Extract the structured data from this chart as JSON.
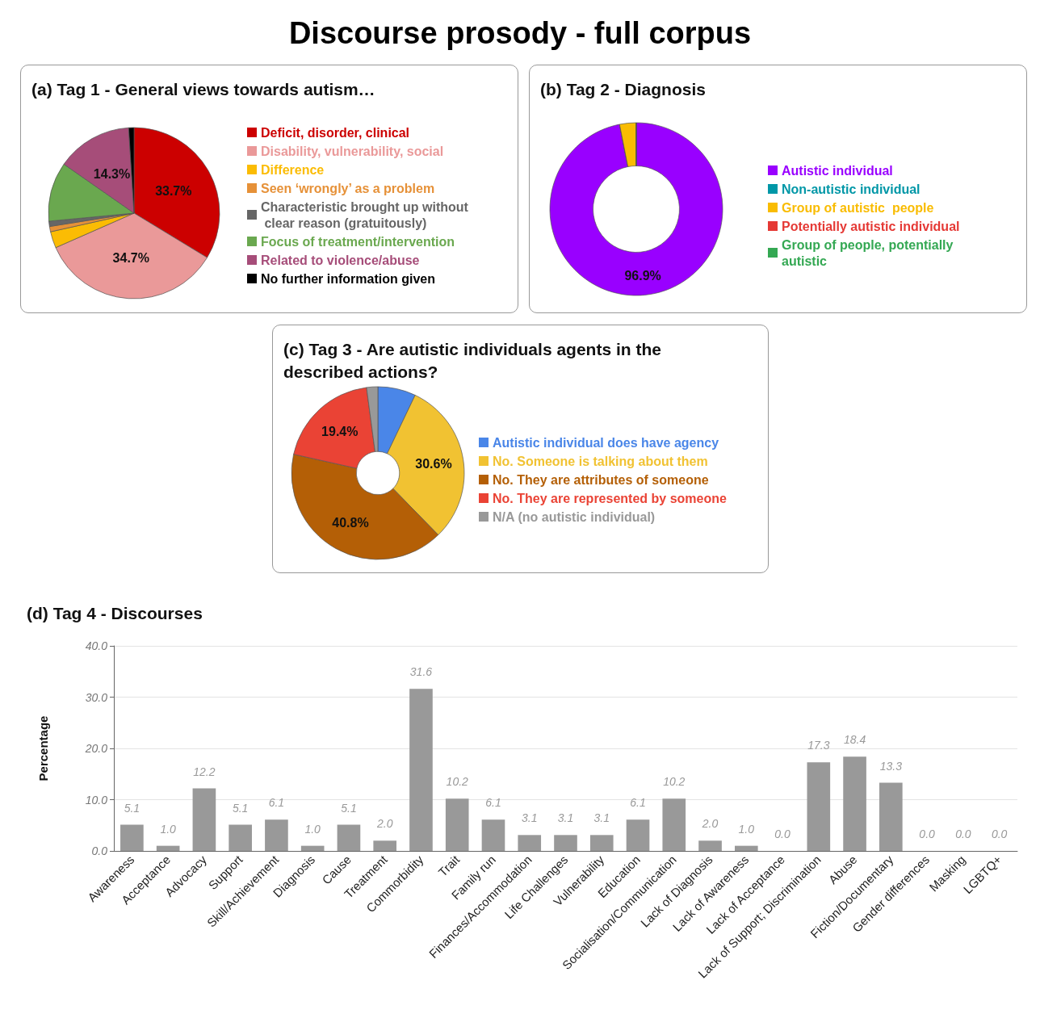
{
  "chart_data": [
    {
      "type": "other",
      "title": "Discourse prosody - full corpus"
    },
    {
      "type": "pie",
      "title": "(a) Tag 1 - General views towards autism…",
      "categories": [
        "Deficit, disorder, clinical",
        "Disability, vulnerability, social",
        "Difference",
        "Seen ‘wrongly’ as a problem",
        "Characteristic brought up without clear reason (gratuitously)",
        "Focus of treatment/intervention",
        "Related to violence/abuse",
        "No further information given"
      ],
      "values": [
        33.7,
        34.7,
        3.1,
        1.0,
        1.0,
        11.2,
        14.3,
        1.0
      ],
      "colors": [
        "#cc0000",
        "#ea9999",
        "#fbbc04",
        "#e69138",
        "#666666",
        "#6aa84f",
        "#a64d79",
        "#000000"
      ],
      "value_labels": [
        "33.7%",
        "34.7%",
        null,
        null,
        null,
        null,
        "14.3%",
        null
      ],
      "legend": "right"
    },
    {
      "type": "donut",
      "title": "(b) Tag 2 - Diagnosis",
      "categories": [
        "Autistic individual",
        "Non-autistic individual",
        "Group of autistic  people",
        "Potentially autistic individual",
        "Group of people, potentially autistic"
      ],
      "values": [
        96.9,
        0,
        3.1,
        0,
        0
      ],
      "colors": [
        "#9900ff",
        "#0097a7",
        "#f9bc02",
        "#e53935",
        "#34a853"
      ],
      "value_labels": [
        "96.9%",
        null,
        null,
        null,
        null
      ],
      "legend": "right"
    },
    {
      "type": "donut",
      "title": "(c) Tag 3 - Are autistic individuals agents in the described actions?",
      "categories": [
        "Autistic individual does have agency",
        "No. Someone is talking about them",
        "No. They are attributes of someone",
        "No. They are represented by someone",
        "N/A (no autistic individual)"
      ],
      "values": [
        7.1,
        30.6,
        40.8,
        19.4,
        2.1
      ],
      "colors": [
        "#4a86e8",
        "#f1c232",
        "#b45f06",
        "#ea4335",
        "#999999"
      ],
      "value_labels": [
        null,
        "30.6%",
        "40.8%",
        "19.4%",
        null
      ],
      "legend": "right"
    },
    {
      "type": "bar",
      "title": "(d) Tag 4 - Discourses",
      "ylabel": "Percentage",
      "categories": [
        "Awareness",
        "Acceptance",
        "Advocacy",
        "Support",
        "Skill/Achievement",
        "Diagnosis",
        "Cause",
        "Treatment",
        "Commorbidity",
        "Trait",
        "Family run",
        "Finances/Accommodation",
        "Life Challenges",
        "Vulnerability",
        "Education",
        "Socialisation/Communication",
        "Lack of Diagnosis",
        "Lack of Awareness",
        "Lack of Acceptance",
        "Lack of Support; Discrimination",
        "Abuse",
        "Fiction/Documentary",
        "Gender differences",
        "Masking",
        "LGBTQ+"
      ],
      "values": [
        5.1,
        1.0,
        12.2,
        5.1,
        6.1,
        1.0,
        5.1,
        2.0,
        31.6,
        10.2,
        6.1,
        3.1,
        3.1,
        3.1,
        6.1,
        10.2,
        2.0,
        1.0,
        0.0,
        17.3,
        18.4,
        13.3,
        0.0,
        0.0,
        0.0
      ],
      "color": "#999999",
      "value_labels": [
        "5.1",
        "1.0",
        "12.2",
        "5.1",
        "6.1",
        "1.0",
        "5.1",
        "2.0",
        "31.6",
        "10.2",
        "6.1",
        "3.1",
        "3.1",
        "3.1",
        "6.1",
        "10.2",
        "2.0",
        "1.0",
        "0.0",
        "17.3",
        "18.4",
        "13.3",
        "0.0",
        "0.0",
        "0.0"
      ],
      "ylim": [
        0,
        40
      ],
      "yticks": [
        {
          "value": 0,
          "label": "0.0"
        },
        {
          "value": 10,
          "label": "10.0"
        },
        {
          "value": 20,
          "label": "20.0"
        },
        {
          "value": 30,
          "label": "30.0"
        },
        {
          "value": 40,
          "label": "40.0"
        }
      ],
      "grid": "y"
    }
  ]
}
